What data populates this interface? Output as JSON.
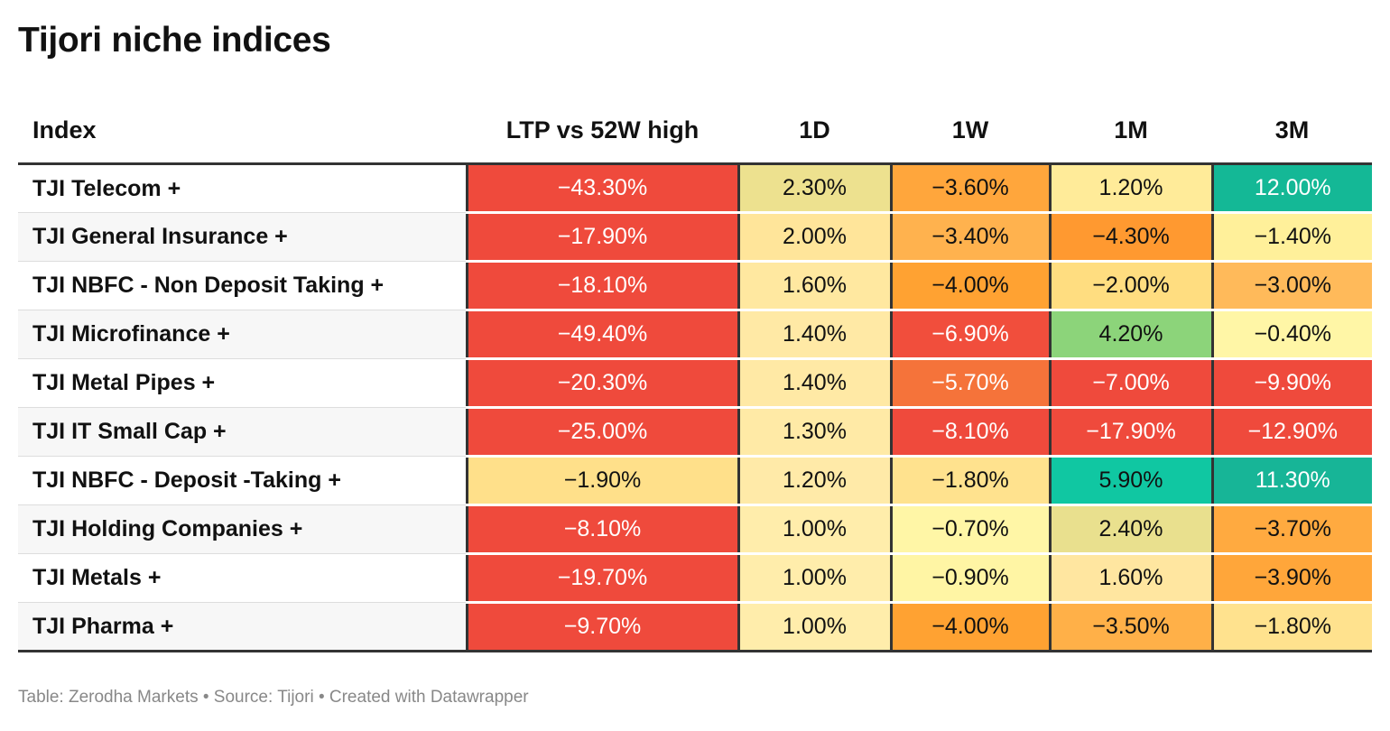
{
  "title": "Tijori niche indices",
  "footer": "Table: Zerodha Markets • Source: Tijori • Created with Datawrapper",
  "chart_data": {
    "type": "table",
    "title": "Tijori niche indices",
    "columns": [
      "Index",
      "LTP vs 52W high",
      "1D",
      "1W",
      "1M",
      "3M"
    ],
    "rows": [
      {
        "name": "TJI Telecom +",
        "values": [
          "−43.30%",
          "2.30%",
          "−3.60%",
          "1.20%",
          "12.00%"
        ],
        "colors": [
          "#ef4a3c",
          "#ede18f",
          "#ffa63c",
          "#ffeb99",
          "#14b896"
        ],
        "text": [
          "light",
          "dark",
          "dark",
          "dark",
          "light"
        ]
      },
      {
        "name": "TJI General Insurance +",
        "values": [
          "−17.90%",
          "2.00%",
          "−3.40%",
          "−4.30%",
          "−1.40%"
        ],
        "colors": [
          "#ef4a3c",
          "#ffe59a",
          "#ffb24e",
          "#ff9930",
          "#fff09a"
        ],
        "text": [
          "light",
          "dark",
          "dark",
          "dark",
          "dark"
        ]
      },
      {
        "name": "TJI NBFC - Non Deposit Taking +",
        "values": [
          "−18.10%",
          "1.60%",
          "−4.00%",
          "−2.00%",
          "−3.00%"
        ],
        "colors": [
          "#ef4a3c",
          "#ffe8a0",
          "#ffa232",
          "#ffdd80",
          "#ffba5a"
        ],
        "text": [
          "light",
          "dark",
          "dark",
          "dark",
          "dark"
        ]
      },
      {
        "name": "TJI Microfinance +",
        "values": [
          "−49.40%",
          "1.40%",
          "−6.90%",
          "4.20%",
          "−0.40%"
        ],
        "colors": [
          "#ef4a3c",
          "#ffe9a5",
          "#f14e3c",
          "#8cd47a",
          "#fff6a6"
        ],
        "text": [
          "light",
          "dark",
          "light",
          "dark",
          "dark"
        ]
      },
      {
        "name": "TJI Metal Pipes +",
        "values": [
          "−20.30%",
          "1.40%",
          "−5.70%",
          "−7.00%",
          "−9.90%"
        ],
        "colors": [
          "#ef4a3c",
          "#ffe9a5",
          "#f5733a",
          "#ef4a3c",
          "#ef4a3c"
        ],
        "text": [
          "light",
          "dark",
          "light",
          "light",
          "light"
        ]
      },
      {
        "name": "TJI IT Small Cap +",
        "values": [
          "−25.00%",
          "1.30%",
          "−8.10%",
          "−17.90%",
          "−12.90%"
        ],
        "colors": [
          "#ef4a3c",
          "#ffeaa6",
          "#ef4a3c",
          "#ef4a3c",
          "#ef4a3c"
        ],
        "text": [
          "light",
          "dark",
          "light",
          "light",
          "light"
        ]
      },
      {
        "name": "TJI NBFC - Deposit -Taking +",
        "values": [
          "−1.90%",
          "1.20%",
          "−1.80%",
          "5.90%",
          "11.30%"
        ],
        "colors": [
          "#ffe08a",
          "#ffeaa8",
          "#ffe28e",
          "#10c7a2",
          "#17b597"
        ],
        "text": [
          "dark",
          "dark",
          "dark",
          "dark",
          "light"
        ]
      },
      {
        "name": "TJI Holding Companies +",
        "values": [
          "−8.10%",
          "1.00%",
          "−0.70%",
          "2.40%",
          "−3.70%"
        ],
        "colors": [
          "#ef4a3c",
          "#ffedab",
          "#fff6a6",
          "#e9e08e",
          "#ffaa40"
        ],
        "text": [
          "light",
          "dark",
          "dark",
          "dark",
          "dark"
        ]
      },
      {
        "name": "TJI Metals +",
        "values": [
          "−19.70%",
          "1.00%",
          "−0.90%",
          "1.60%",
          "−3.90%"
        ],
        "colors": [
          "#ef4a3c",
          "#ffedab",
          "#fff5a4",
          "#ffe6a0",
          "#ffa63a"
        ],
        "text": [
          "light",
          "dark",
          "dark",
          "dark",
          "dark"
        ]
      },
      {
        "name": "TJI Pharma +",
        "values": [
          "−9.70%",
          "1.00%",
          "−4.00%",
          "−3.50%",
          "−1.80%"
        ],
        "colors": [
          "#ef4a3c",
          "#ffedab",
          "#ffa232",
          "#ffb048",
          "#ffe28e"
        ],
        "text": [
          "light",
          "dark",
          "dark",
          "dark",
          "dark"
        ]
      }
    ]
  }
}
